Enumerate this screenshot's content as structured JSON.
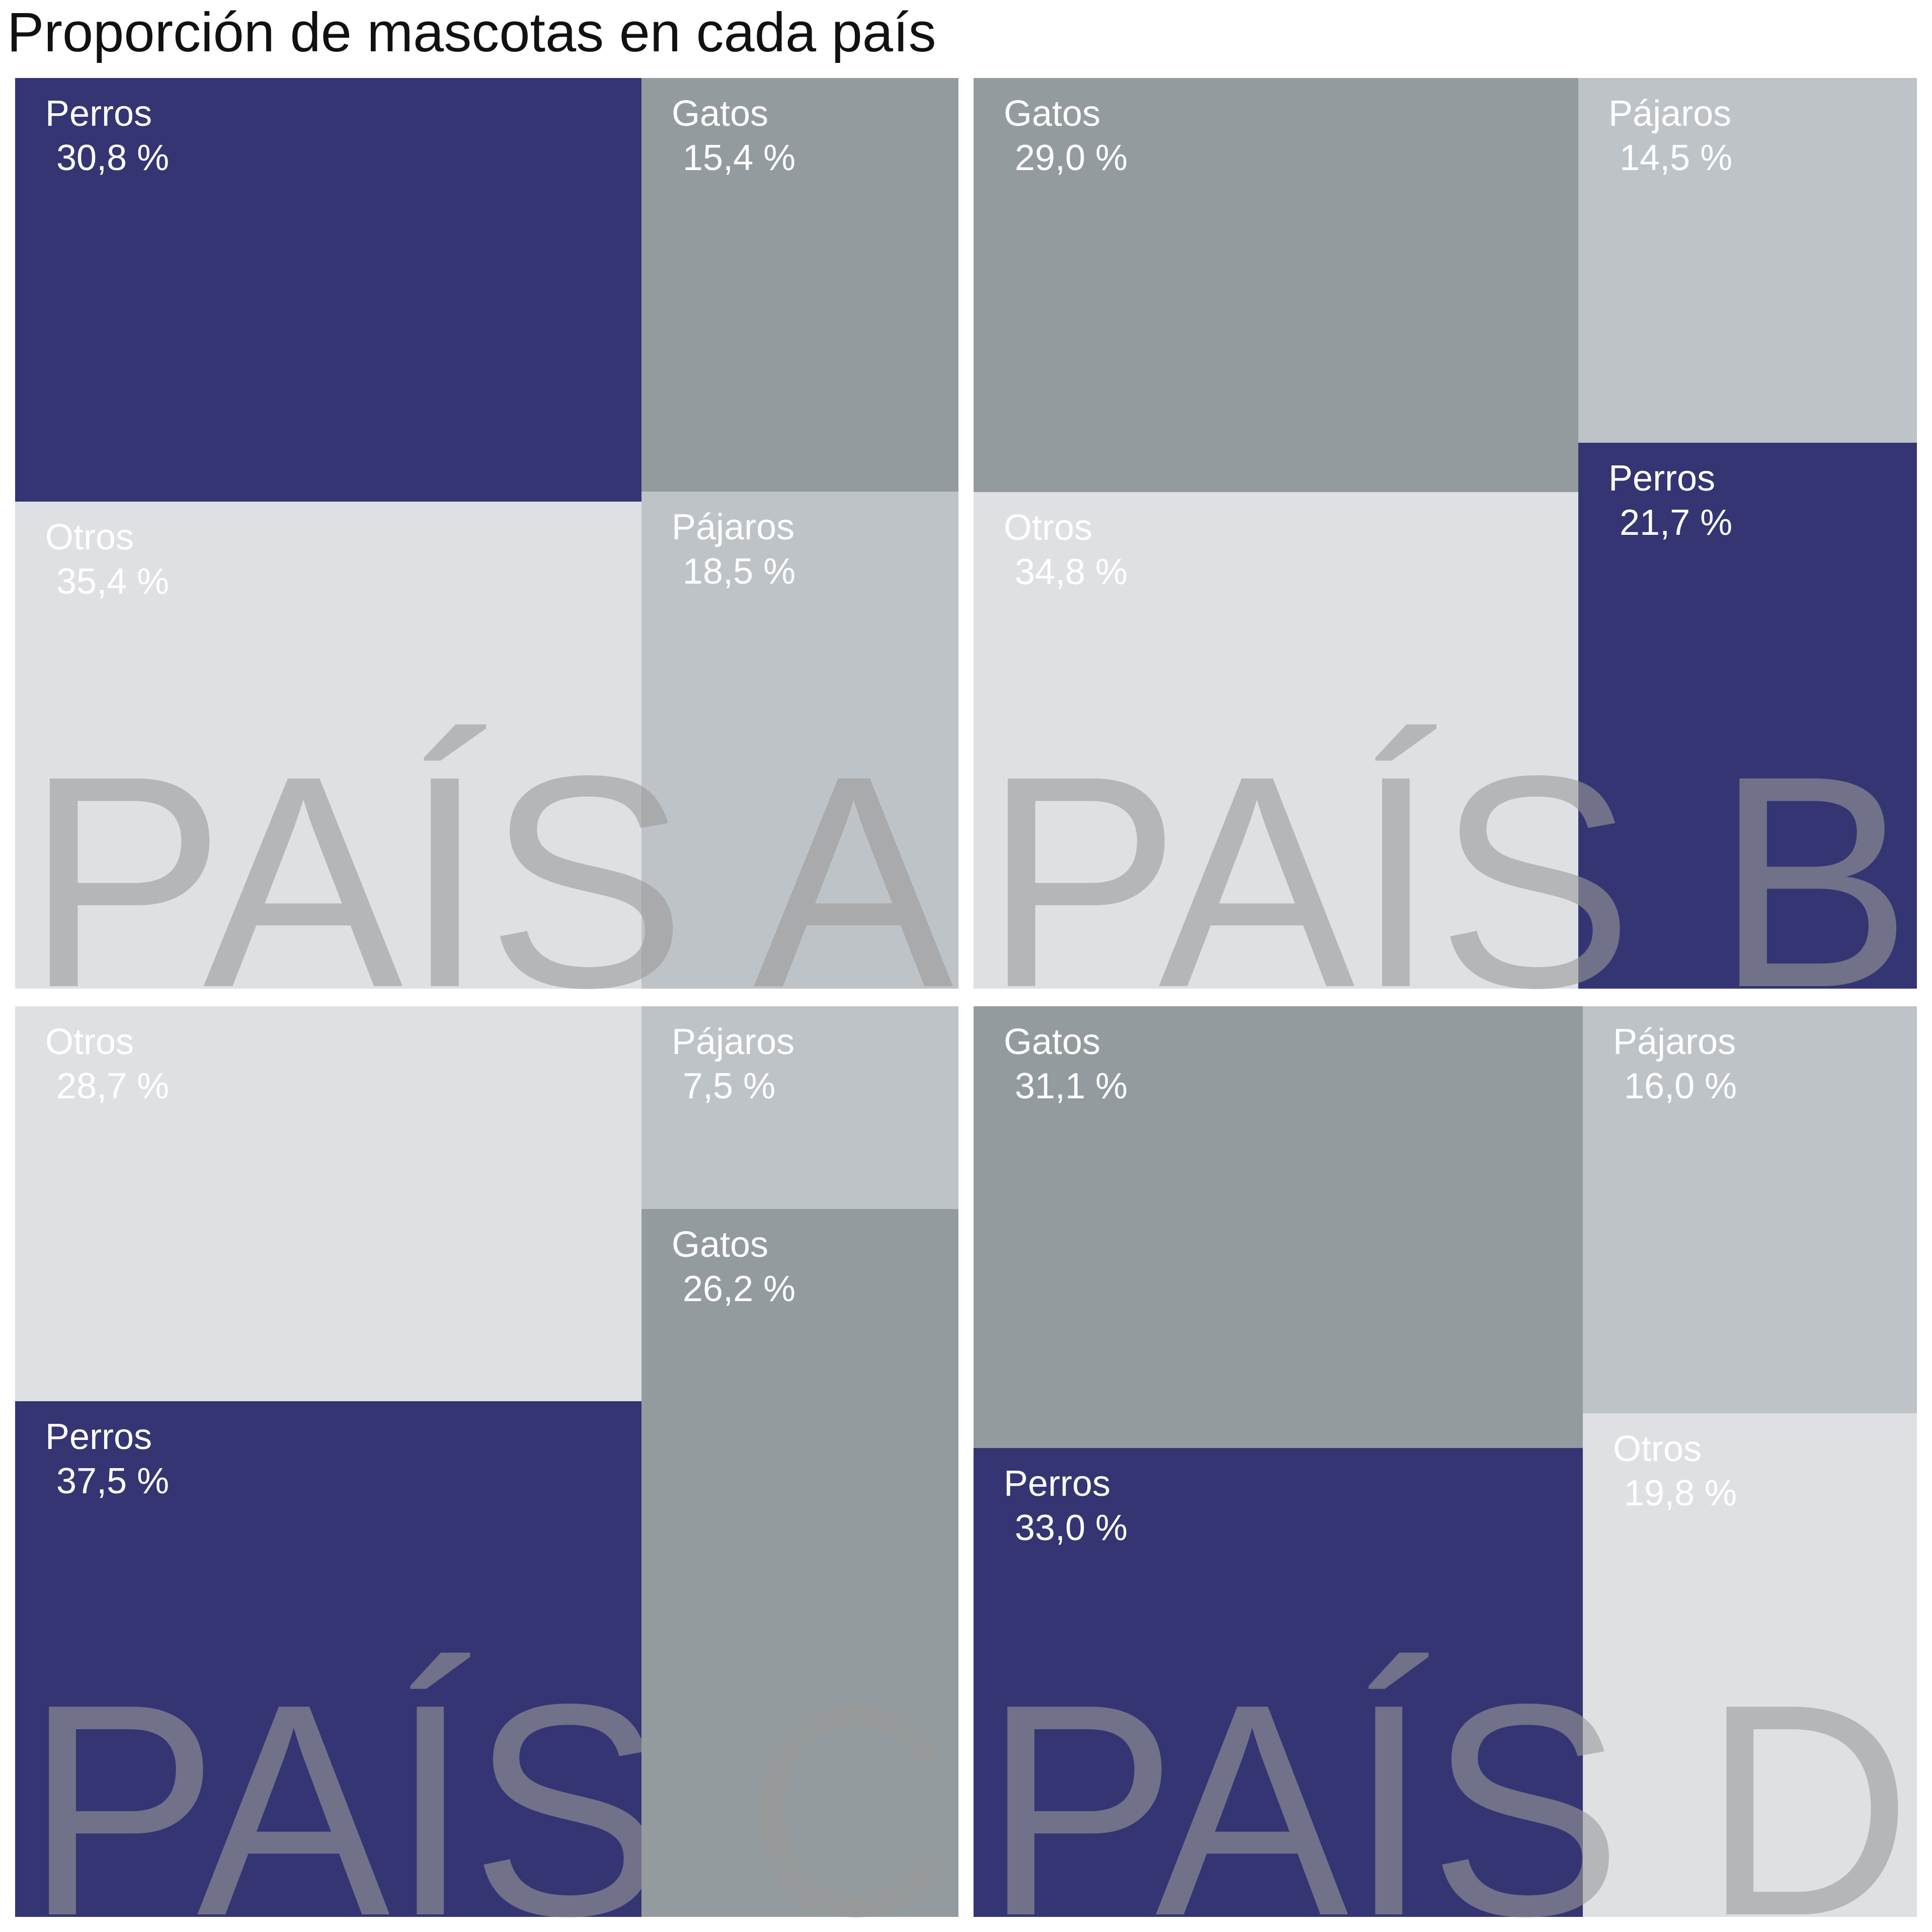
{
  "title": "Proporción de mascotas en cada país",
  "colors": {
    "Perros": "#353573",
    "Gatos": "#949b9e",
    "Pájaros": "#bec3c7",
    "Otros": "#dfe0e4",
    "watermark": "#9a9a9a"
  },
  "chart_data": [
    {
      "type": "treemap",
      "panel": "PAÍS A",
      "items": [
        {
          "label": "Perros",
          "value_label": "30,8 %",
          "value": 30.8
        },
        {
          "label": "Otros",
          "value_label": "35,4 %",
          "value": 35.4
        },
        {
          "label": "Gatos",
          "value_label": "15,4 %",
          "value": 15.4
        },
        {
          "label": "Pájaros",
          "value_label": "18,5 %",
          "value": 18.5
        }
      ]
    },
    {
      "type": "treemap",
      "panel": "PAÍS B",
      "items": [
        {
          "label": "Gatos",
          "value_label": "29,0 %",
          "value": 29.0
        },
        {
          "label": "Otros",
          "value_label": "34,8 %",
          "value": 34.8
        },
        {
          "label": "Pájaros",
          "value_label": "14,5 %",
          "value": 14.5
        },
        {
          "label": "Perros",
          "value_label": "21,7 %",
          "value": 21.7
        }
      ]
    },
    {
      "type": "treemap",
      "panel": "PAÍS C",
      "items": [
        {
          "label": "Otros",
          "value_label": "28,7 %",
          "value": 28.7
        },
        {
          "label": "Perros",
          "value_label": "37,5 %",
          "value": 37.5
        },
        {
          "label": "Pájaros",
          "value_label": "7,5 %",
          "value": 7.5
        },
        {
          "label": "Gatos",
          "value_label": "26,2 %",
          "value": 26.2
        }
      ]
    },
    {
      "type": "treemap",
      "panel": "PAÍS D",
      "items": [
        {
          "label": "Gatos",
          "value_label": "31,1 %",
          "value": 31.1
        },
        {
          "label": "Perros",
          "value_label": "33,0 %",
          "value": 33.0
        },
        {
          "label": "Pájaros",
          "value_label": "16,0 %",
          "value": 16.0
        },
        {
          "label": "Otros",
          "value_label": "19,8 %",
          "value": 19.8
        }
      ]
    }
  ]
}
